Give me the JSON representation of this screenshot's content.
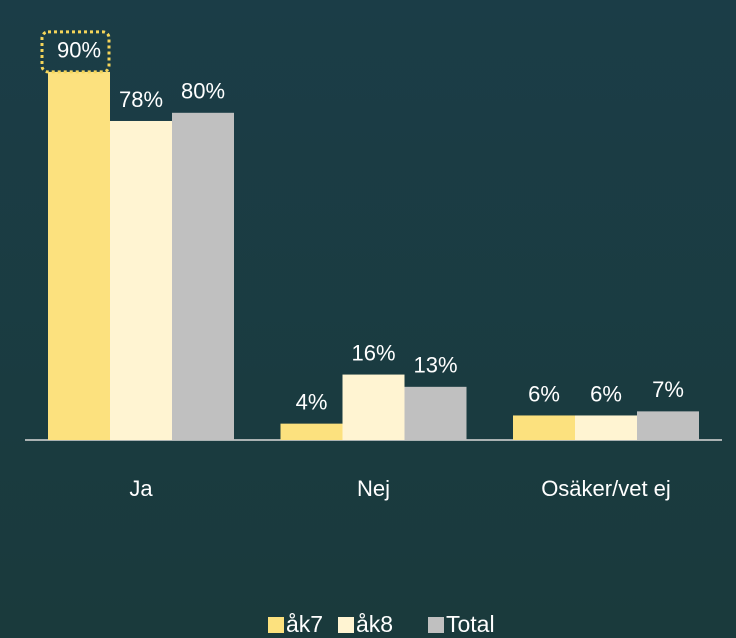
{
  "chart_data": {
    "type": "bar",
    "categories": [
      "Ja",
      "Nej",
      "Osäker/vet ej"
    ],
    "series": [
      {
        "name": "åk7",
        "color": "#fce17e",
        "values": [
          90,
          4,
          6
        ],
        "value_labels": [
          "90%",
          "4%",
          "6%"
        ]
      },
      {
        "name": "åk8",
        "color": "#fff4d2",
        "values": [
          78,
          16,
          6
        ],
        "value_labels": [
          "78%",
          "16%",
          "6%"
        ]
      },
      {
        "name": "Total",
        "color": "#c0c0c0",
        "values": [
          80,
          13,
          7
        ],
        "value_labels": [
          "80%",
          "13%",
          "7%"
        ]
      }
    ],
    "legend": "bottom"
  }
}
